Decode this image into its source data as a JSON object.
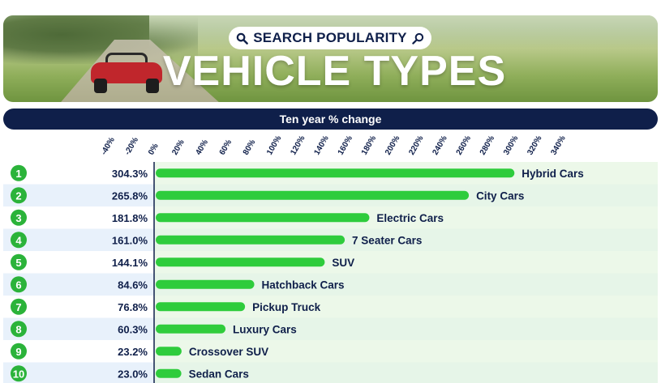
{
  "header": {
    "badge": "SEARCH POPULARITY",
    "title": "VEHICLE TYPES",
    "subtitle": "Ten year % change"
  },
  "chart_data": {
    "type": "bar",
    "orientation": "horizontal",
    "title": "VEHICLE TYPES",
    "subtitle": "Ten year % change",
    "ticks": [
      "-40%",
      "-20%",
      "0%",
      "20%",
      "40%",
      "60%",
      "80%",
      "100%",
      "120%",
      "140%",
      "160%",
      "180%",
      "200%",
      "220%",
      "240%",
      "260%",
      "280%",
      "300%",
      "320%",
      "340%"
    ],
    "xlim": [
      -40,
      340
    ],
    "grid": false,
    "rows": [
      {
        "rank": "1",
        "label": "Hybrid Cars",
        "value": 304.3,
        "value_label": "304.3%"
      },
      {
        "rank": "2",
        "label": "City Cars",
        "value": 265.8,
        "value_label": "265.8%"
      },
      {
        "rank": "3",
        "label": "Electric Cars",
        "value": 181.8,
        "value_label": "181.8%"
      },
      {
        "rank": "4",
        "label": "7 Seater Cars",
        "value": 161.0,
        "value_label": "161.0%"
      },
      {
        "rank": "5",
        "label": "SUV",
        "value": 144.1,
        "value_label": "144.1%"
      },
      {
        "rank": "6",
        "label": "Hatchback Cars",
        "value": 84.6,
        "value_label": "84.6%"
      },
      {
        "rank": "7",
        "label": "Pickup Truck",
        "value": 76.8,
        "value_label": "76.8%"
      },
      {
        "rank": "8",
        "label": "Luxury Cars",
        "value": 60.3,
        "value_label": "60.3%"
      },
      {
        "rank": "9",
        "label": "Crossover SUV",
        "value": 23.2,
        "value_label": "23.2%"
      },
      {
        "rank": "10",
        "label": "Sedan Cars",
        "value": 23.0,
        "value_label": "23.0%"
      }
    ],
    "colors": {
      "bar": "#2ecc3c",
      "rank_badge": "#2bb33a",
      "row_stripe": "#e8f1fb",
      "row_stripe_alt": "#ffffff",
      "panel": "#e6f6e2",
      "axis_line": "#0f1f4a",
      "text": "#0f1f4a"
    }
  }
}
